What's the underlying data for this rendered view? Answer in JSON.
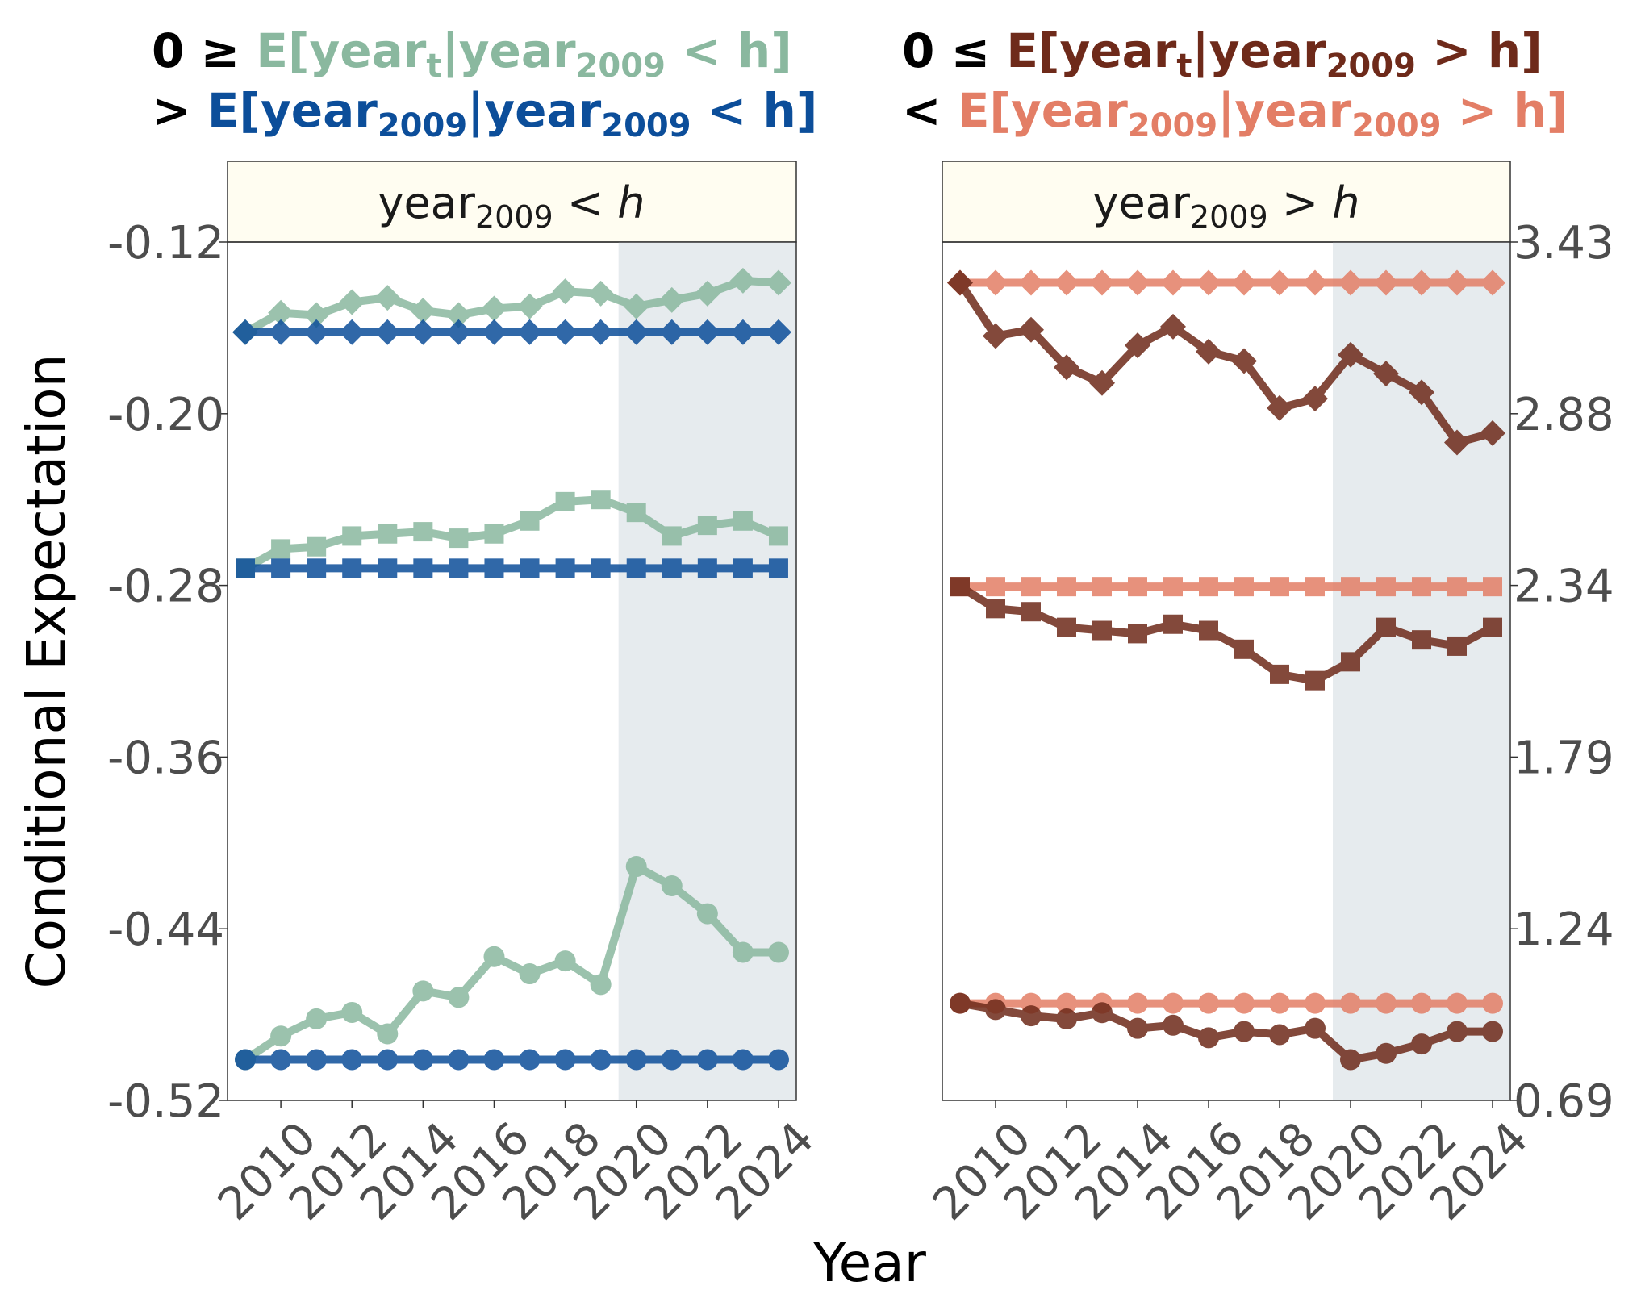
{
  "legend": {
    "left_line1": {
      "sym": "0",
      "op": "≥",
      "pre": "E[year",
      "s1": "t",
      "mid": "|year",
      "s2": "2009",
      "post": " < h]",
      "color": "#8ab89f"
    },
    "left_line2": {
      "op": ">",
      "pre": "E[year",
      "s1": "2009",
      "mid": "|year",
      "s2": "2009",
      "post": " < h]",
      "color": "#0c4e9a"
    },
    "right_line1": {
      "sym": "0",
      "op": "≤",
      "pre": "E[year",
      "s1": "t",
      "mid": "|year",
      "s2": "2009",
      "post": " > h]",
      "color": "#6e2a1a"
    },
    "right_line2": {
      "op": "<",
      "pre": "E[year",
      "s1": "2009",
      "mid": "|year",
      "s2": "2009",
      "post": " > h]",
      "color": "#e37e66"
    }
  },
  "panels": {
    "left": {
      "strip_main": "year",
      "strip_sub": "2009",
      "strip_rel": " < ",
      "strip_var": "h"
    },
    "right": {
      "strip_main": "year",
      "strip_sub": "2009",
      "strip_rel": " > ",
      "strip_var": "h"
    }
  },
  "axes": {
    "ylabel": "Conditional Expectation",
    "xlabel": "Year",
    "left_yticks": [
      "-0.12",
      "-0.20",
      "-0.28",
      "-0.36",
      "-0.44",
      "-0.52"
    ],
    "right_yticks": [
      "3.43",
      "2.88",
      "2.34",
      "1.79",
      "1.24",
      "0.69"
    ],
    "xticks": [
      "2010",
      "2012",
      "2014",
      "2016",
      "2018",
      "2020",
      "2022",
      "2024"
    ]
  },
  "chart_data": [
    {
      "type": "line",
      "panel": "year2009 < h",
      "x": [
        2009,
        2010,
        2011,
        2012,
        2013,
        2014,
        2015,
        2016,
        2017,
        2018,
        2019,
        2020,
        2021,
        2022,
        2023,
        2024
      ],
      "ylim": [
        -0.52,
        -0.12
      ],
      "shaded_x_from": 2020,
      "series": [
        {
          "marker": "diamond",
          "color": "#8ab89f",
          "values": [
            -0.162,
            -0.153,
            -0.154,
            -0.148,
            -0.146,
            -0.152,
            -0.154,
            -0.151,
            -0.15,
            -0.143,
            -0.144,
            -0.15,
            -0.147,
            -0.144,
            -0.138,
            -0.139
          ]
        },
        {
          "marker": "diamond",
          "color": "#0c4e9a",
          "values": [
            -0.162,
            -0.162,
            -0.162,
            -0.162,
            -0.162,
            -0.162,
            -0.162,
            -0.162,
            -0.162,
            -0.162,
            -0.162,
            -0.162,
            -0.162,
            -0.162,
            -0.162,
            -0.162
          ]
        },
        {
          "marker": "square",
          "color": "#8ab89f",
          "values": [
            -0.272,
            -0.263,
            -0.262,
            -0.257,
            -0.256,
            -0.255,
            -0.258,
            -0.256,
            -0.25,
            -0.241,
            -0.24,
            -0.246,
            -0.257,
            -0.252,
            -0.25,
            -0.257
          ]
        },
        {
          "marker": "square",
          "color": "#0c4e9a",
          "values": [
            -0.272,
            -0.272,
            -0.272,
            -0.272,
            -0.272,
            -0.272,
            -0.272,
            -0.272,
            -0.272,
            -0.272,
            -0.272,
            -0.272,
            -0.272,
            -0.272,
            -0.272,
            -0.272
          ]
        },
        {
          "marker": "circle",
          "color": "#8ab89f",
          "values": [
            -0.501,
            -0.49,
            -0.482,
            -0.479,
            -0.489,
            -0.469,
            -0.472,
            -0.453,
            -0.461,
            -0.455,
            -0.466,
            -0.411,
            -0.42,
            -0.433,
            -0.451,
            -0.451
          ]
        },
        {
          "marker": "circle",
          "color": "#0c4e9a",
          "values": [
            -0.501,
            -0.501,
            -0.501,
            -0.501,
            -0.501,
            -0.501,
            -0.501,
            -0.501,
            -0.501,
            -0.501,
            -0.501,
            -0.501,
            -0.501,
            -0.501,
            -0.501,
            -0.501
          ]
        }
      ]
    },
    {
      "type": "line",
      "panel": "year2009 > h",
      "x": [
        2009,
        2010,
        2011,
        2012,
        2013,
        2014,
        2015,
        2016,
        2017,
        2018,
        2019,
        2020,
        2021,
        2022,
        2023,
        2024
      ],
      "ylim": [
        0.69,
        3.43
      ],
      "shaded_x_from": 2020,
      "series": [
        {
          "marker": "diamond",
          "color": "#e37e66",
          "values": [
            3.3,
            3.3,
            3.3,
            3.3,
            3.3,
            3.3,
            3.3,
            3.3,
            3.3,
            3.3,
            3.3,
            3.3,
            3.3,
            3.3,
            3.3,
            3.3
          ]
        },
        {
          "marker": "diamond",
          "color": "#6e2a1a",
          "values": [
            3.3,
            3.13,
            3.15,
            3.03,
            2.98,
            3.1,
            3.16,
            3.08,
            3.05,
            2.9,
            2.93,
            3.07,
            3.01,
            2.95,
            2.79,
            2.82
          ]
        },
        {
          "marker": "square",
          "color": "#e37e66",
          "values": [
            2.33,
            2.33,
            2.33,
            2.33,
            2.33,
            2.33,
            2.33,
            2.33,
            2.33,
            2.33,
            2.33,
            2.33,
            2.33,
            2.33,
            2.33,
            2.33
          ]
        },
        {
          "marker": "square",
          "color": "#6e2a1a",
          "values": [
            2.33,
            2.26,
            2.25,
            2.2,
            2.19,
            2.18,
            2.21,
            2.19,
            2.13,
            2.05,
            2.03,
            2.09,
            2.2,
            2.16,
            2.14,
            2.2
          ]
        },
        {
          "marker": "circle",
          "color": "#e37e66",
          "values": [
            1.0,
            1.0,
            1.0,
            1.0,
            1.0,
            1.0,
            1.0,
            1.0,
            1.0,
            1.0,
            1.0,
            1.0,
            1.0,
            1.0,
            1.0,
            1.0
          ]
        },
        {
          "marker": "circle",
          "color": "#6e2a1a",
          "values": [
            1.0,
            0.98,
            0.96,
            0.95,
            0.97,
            0.92,
            0.93,
            0.89,
            0.91,
            0.9,
            0.92,
            0.82,
            0.84,
            0.87,
            0.91,
            0.91
          ]
        }
      ]
    }
  ]
}
